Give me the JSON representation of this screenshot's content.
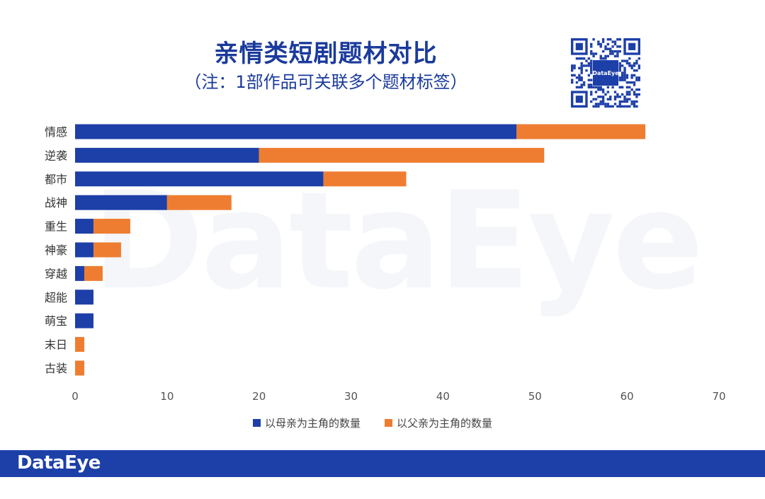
{
  "title": "亲情类短剧题材对比",
  "subtitle": "（注：1部作品可关联多个题材标签）",
  "qr_badge": "DataEye",
  "watermark": "DataEye",
  "footer_logo": "DataEye",
  "colors": {
    "mother": "#1d3fa8",
    "father": "#ee7d31",
    "brand": "#1d3fa8"
  },
  "chart_data": {
    "type": "bar",
    "orientation": "horizontal",
    "stacked": true,
    "categories": [
      "情感",
      "逆袭",
      "都市",
      "战神",
      "重生",
      "神豪",
      "穿越",
      "超能",
      "萌宝",
      "末日",
      "古装"
    ],
    "series": [
      {
        "name": "以母亲为主角的数量",
        "color": "#1d3fa8",
        "values": [
          48,
          20,
          27,
          10,
          2,
          2,
          1,
          2,
          2,
          0,
          0
        ]
      },
      {
        "name": "以父亲为主角的数量",
        "color": "#ee7d31",
        "values": [
          14,
          31,
          9,
          7,
          4,
          3,
          2,
          0,
          0,
          1,
          1
        ]
      }
    ],
    "xlim": [
      0,
      70
    ],
    "xticks": [
      0,
      10,
      20,
      30,
      40,
      50,
      60,
      70
    ],
    "grid": false,
    "legend_position": "bottom"
  }
}
